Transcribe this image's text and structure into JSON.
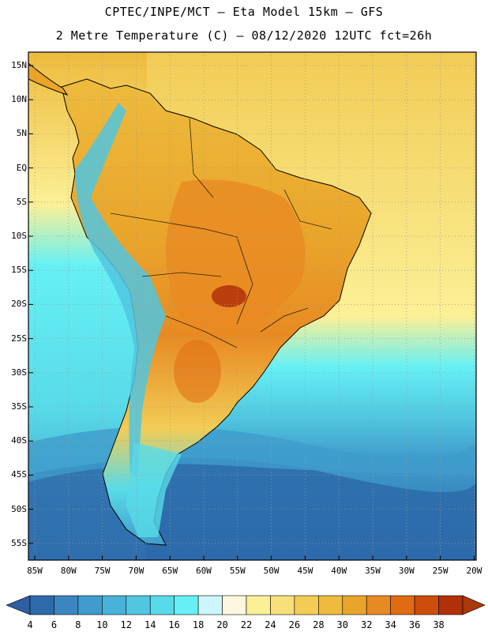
{
  "header": {
    "line1": "CPTEC/INPE/MCT –  Eta Model 15km – GFS",
    "line2": "2 Metre Temperature (C) – 08/12/2020 12UTC fct=26h"
  },
  "axes": {
    "lat_labels": [
      "15N",
      "10N",
      "5N",
      "EQ",
      "5S",
      "10S",
      "15S",
      "20S",
      "25S",
      "30S",
      "35S",
      "40S",
      "45S",
      "50S",
      "55S"
    ],
    "lon_labels": [
      "85W",
      "80W",
      "75W",
      "70W",
      "65W",
      "60W",
      "55W",
      "50W",
      "45W",
      "40W",
      "35W",
      "30W",
      "25W",
      "20W"
    ]
  },
  "colorbar": {
    "labels": [
      "4",
      "6",
      "8",
      "10",
      "12",
      "14",
      "16",
      "18",
      "20",
      "22",
      "24",
      "26",
      "28",
      "30",
      "32",
      "34",
      "36",
      "38"
    ],
    "colors": [
      "#2d6aaa",
      "#3b86c0",
      "#3f9ccc",
      "#48b2d8",
      "#50c6e0",
      "#58dbe8",
      "#66f0f5",
      "#ccf6fb",
      "#fdf7e0",
      "#fcf096",
      "#f7e07a",
      "#f2cc55",
      "#eebb3c",
      "#e9a42a",
      "#e88a22",
      "#e06b12",
      "#cf4d0a",
      "#b23008"
    ],
    "low_end_color": "#2f5fa0",
    "high_end_color": "#a9380a"
  }
}
